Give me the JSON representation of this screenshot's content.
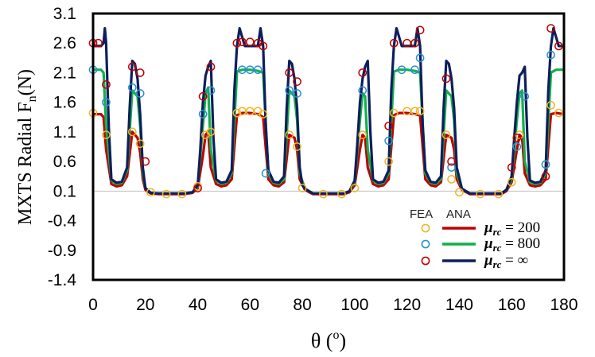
{
  "chart_data": {
    "type": "line",
    "xlabel_main": "θ (",
    "xlabel_unit": "o",
    "xlabel_close": ")",
    "ylabel_main": "MXTS Radial F",
    "ylabel_sub": "n",
    "ylabel_unit": "(N)",
    "xlim": [
      0,
      180
    ],
    "ylim": [
      -1.4,
      3.1
    ],
    "xticks": [
      0,
      20,
      40,
      60,
      80,
      100,
      120,
      140,
      160,
      180
    ],
    "yticks": [
      -1.4,
      -0.9,
      -0.4,
      0.1,
      0.6,
      1.1,
      1.6,
      2.1,
      2.6,
      3.1
    ],
    "x_tick_labels": [
      "0",
      "20",
      "40",
      "60",
      "80",
      "100",
      "120",
      "140",
      "160",
      "180"
    ],
    "y_tick_labels": [
      "-1.4",
      "-0.9",
      "-0.4",
      "0.1",
      "0.6",
      "1.1",
      "1.6",
      "2.1",
      "2.6",
      "3.1"
    ],
    "legend": {
      "position": "bottom-right",
      "header_fea": "FEA",
      "header_ana": "ANA",
      "entries": [
        {
          "mu": "μ",
          "sub": "rc",
          "value": " = 200"
        },
        {
          "mu": "μ",
          "sub": "rc",
          "value": " = 800"
        },
        {
          "mu": "μ",
          "sub": "rc",
          "value": " = ∞"
        }
      ]
    },
    "series": [
      {
        "legend_index": 0,
        "color": "#c00000",
        "marker_color": "#f0b429",
        "x": [
          0,
          3,
          4,
          5,
          7,
          9,
          11,
          13,
          15,
          17,
          18,
          19,
          20,
          22,
          25,
          30,
          35,
          38,
          40,
          42,
          43,
          44,
          45,
          47,
          49,
          51,
          53,
          55,
          57,
          60,
          63,
          65,
          67,
          69,
          71,
          73,
          75,
          77,
          78,
          79,
          81,
          84,
          90,
          96,
          98,
          100,
          102,
          103,
          104,
          105,
          107,
          109,
          111,
          113,
          115,
          117,
          120,
          123,
          125,
          127,
          129,
          131,
          133,
          135,
          137,
          138,
          139,
          141,
          144,
          150,
          156,
          158,
          160,
          162,
          163,
          164,
          165,
          167,
          169,
          171,
          173,
          175,
          177,
          180
        ],
        "y": [
          1.4,
          1.4,
          1.35,
          0.8,
          0.22,
          0.18,
          0.2,
          0.35,
          1.1,
          1.0,
          0.75,
          0.3,
          0.12,
          0.06,
          0.05,
          0.05,
          0.05,
          0.07,
          0.15,
          0.7,
          1.05,
          1.1,
          0.5,
          0.22,
          0.18,
          0.2,
          0.3,
          1.38,
          1.42,
          1.42,
          1.4,
          1.35,
          0.3,
          0.2,
          0.18,
          0.25,
          1.05,
          1.0,
          0.8,
          0.3,
          0.12,
          0.05,
          0.05,
          0.05,
          0.08,
          0.2,
          0.8,
          1.05,
          1.0,
          0.5,
          0.22,
          0.18,
          0.2,
          0.3,
          1.38,
          1.42,
          1.42,
          1.4,
          1.38,
          0.3,
          0.2,
          0.18,
          0.25,
          1.05,
          1.0,
          0.8,
          0.3,
          0.12,
          0.05,
          0.05,
          0.05,
          0.1,
          0.25,
          0.8,
          1.05,
          1.0,
          0.4,
          0.2,
          0.18,
          0.2,
          0.3,
          1.4,
          1.42,
          1.4
        ],
        "fea_x": [
          0,
          5,
          15,
          18,
          22,
          28,
          34,
          40,
          43,
          45,
          55,
          57,
          60,
          63,
          65,
          75,
          78,
          80,
          88,
          95,
          100,
          103,
          113,
          115,
          120,
          123,
          125,
          135,
          137,
          140,
          148,
          155,
          160,
          163,
          173,
          175,
          178
        ],
        "fea_y": [
          1.42,
          1.05,
          1.1,
          0.9,
          0.08,
          0.05,
          0.05,
          0.18,
          1.05,
          1.1,
          1.42,
          1.45,
          1.45,
          1.45,
          1.4,
          1.05,
          0.85,
          0.15,
          0.05,
          0.05,
          0.15,
          1.05,
          0.6,
          1.42,
          1.45,
          1.45,
          1.45,
          1.05,
          0.3,
          0.08,
          0.05,
          0.05,
          0.25,
          1.05,
          0.55,
          1.55,
          1.42
        ]
      },
      {
        "legend_index": 1,
        "color": "#12b04a",
        "marker_color": "#2a8fd6",
        "x": [
          0,
          3,
          4,
          5,
          7,
          9,
          11,
          13,
          15,
          17,
          18,
          19,
          20,
          22,
          25,
          30,
          35,
          38,
          40,
          42,
          43,
          44,
          45,
          47,
          49,
          51,
          53,
          55,
          57,
          60,
          63,
          65,
          67,
          69,
          71,
          73,
          75,
          77,
          78,
          79,
          81,
          84,
          90,
          96,
          98,
          100,
          102,
          103,
          104,
          105,
          107,
          109,
          111,
          113,
          115,
          117,
          120,
          123,
          125,
          127,
          129,
          131,
          133,
          135,
          137,
          138,
          139,
          141,
          144,
          150,
          156,
          158,
          160,
          162,
          163,
          164,
          165,
          167,
          169,
          171,
          173,
          175,
          177,
          180
        ],
        "y": [
          2.15,
          2.15,
          2.1,
          1.2,
          0.28,
          0.22,
          0.24,
          0.45,
          1.8,
          1.7,
          1.2,
          0.4,
          0.15,
          0.07,
          0.06,
          0.06,
          0.06,
          0.08,
          0.18,
          1.2,
          1.75,
          1.85,
          0.8,
          0.28,
          0.22,
          0.24,
          0.4,
          2.12,
          2.15,
          2.15,
          2.13,
          2.1,
          0.4,
          0.24,
          0.22,
          0.3,
          1.8,
          1.7,
          1.3,
          0.4,
          0.14,
          0.06,
          0.06,
          0.06,
          0.1,
          0.25,
          1.3,
          1.75,
          1.7,
          0.8,
          0.28,
          0.22,
          0.24,
          0.4,
          2.12,
          2.15,
          2.15,
          2.13,
          2.1,
          0.4,
          0.24,
          0.22,
          0.3,
          1.8,
          1.7,
          1.3,
          0.4,
          0.14,
          0.06,
          0.06,
          0.06,
          0.12,
          0.3,
          1.3,
          1.75,
          1.8,
          0.6,
          0.25,
          0.22,
          0.24,
          0.4,
          2.1,
          2.15,
          2.15
        ],
        "fea_x": [
          0,
          5,
          15,
          18,
          42,
          45,
          57,
          60,
          63,
          66,
          75,
          78,
          103,
          113,
          118,
          123,
          125,
          137,
          162,
          165,
          173,
          175
        ],
        "fea_y": [
          2.15,
          1.6,
          1.85,
          1.75,
          1.4,
          1.8,
          2.15,
          2.15,
          2.15,
          0.4,
          1.8,
          1.75,
          1.8,
          0.95,
          2.15,
          2.15,
          2.35,
          0.5,
          0.85,
          1.7,
          0.55,
          2.4
        ]
      },
      {
        "legend_index": 2,
        "color": "#0d1f5c",
        "marker_color": "#c00000",
        "x": [
          0,
          2,
          3,
          4,
          4.5,
          5,
          6,
          7,
          9,
          11,
          13,
          14,
          15,
          16,
          17,
          18,
          19,
          20,
          22,
          25,
          30,
          35,
          38,
          40,
          41,
          42,
          43,
          44,
          45,
          46,
          47,
          49,
          51,
          53,
          54,
          55,
          56,
          58,
          60,
          62,
          63,
          64,
          65,
          66,
          67,
          69,
          71,
          73,
          74,
          75,
          76,
          77,
          78,
          79,
          80,
          81,
          84,
          90,
          96,
          98,
          100,
          101,
          102,
          103,
          104,
          105,
          106,
          107,
          109,
          111,
          113,
          114,
          115,
          116,
          118,
          120,
          122,
          123,
          124,
          125,
          126,
          127,
          129,
          131,
          133,
          134,
          135,
          136,
          137,
          138,
          139,
          141,
          144,
          150,
          156,
          158,
          160,
          161,
          162,
          163,
          164,
          165,
          166,
          167,
          169,
          171,
          173,
          174,
          175,
          176,
          178,
          180
        ],
        "y": [
          2.55,
          2.55,
          2.55,
          2.6,
          2.85,
          2.6,
          1.2,
          0.3,
          0.24,
          0.26,
          0.5,
          1.5,
          2.3,
          2.25,
          2.0,
          1.4,
          0.5,
          0.15,
          0.07,
          0.06,
          0.06,
          0.06,
          0.08,
          0.2,
          0.8,
          1.6,
          2.05,
          2.2,
          2.3,
          1.0,
          0.3,
          0.24,
          0.26,
          0.45,
          1.8,
          2.55,
          2.85,
          2.55,
          2.55,
          2.55,
          2.55,
          2.85,
          2.55,
          1.2,
          0.45,
          0.26,
          0.24,
          0.35,
          1.5,
          2.3,
          2.25,
          2.0,
          1.5,
          0.5,
          0.2,
          0.14,
          0.06,
          0.06,
          0.06,
          0.1,
          0.28,
          0.9,
          1.6,
          2.0,
          2.2,
          2.3,
          1.1,
          0.3,
          0.24,
          0.26,
          0.45,
          1.8,
          2.55,
          2.85,
          2.55,
          2.55,
          2.55,
          2.55,
          2.85,
          2.55,
          1.2,
          0.45,
          0.26,
          0.24,
          0.35,
          1.5,
          2.3,
          2.25,
          2.0,
          1.5,
          0.5,
          0.14,
          0.06,
          0.06,
          0.06,
          0.12,
          0.35,
          1.0,
          1.6,
          2.05,
          2.1,
          2.2,
          1.0,
          0.28,
          0.24,
          0.26,
          0.45,
          1.8,
          2.55,
          2.85,
          2.55,
          2.55
        ],
        "fea_x": [
          0,
          2,
          5,
          15,
          18,
          20,
          40,
          42,
          45,
          55,
          57,
          60,
          63,
          65,
          75,
          78,
          103,
          113,
          115,
          120,
          123,
          125,
          135,
          137,
          160,
          162,
          173,
          175,
          178
        ],
        "fea_y": [
          2.6,
          2.6,
          1.9,
          2.2,
          2.1,
          0.6,
          0.15,
          1.7,
          2.2,
          2.6,
          2.62,
          2.62,
          2.6,
          2.55,
          2.1,
          1.95,
          2.1,
          1.2,
          2.6,
          2.6,
          2.6,
          2.82,
          2.0,
          0.6,
          0.5,
          1.0,
          0.35,
          2.85,
          2.55
        ]
      }
    ]
  }
}
